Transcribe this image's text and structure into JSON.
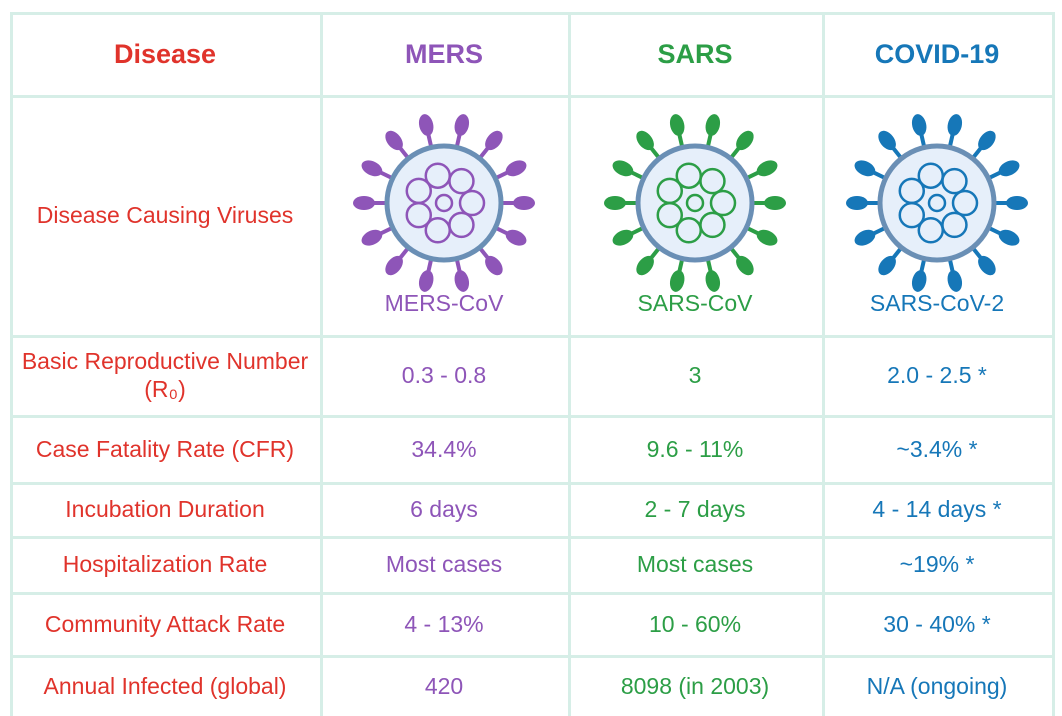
{
  "table": {
    "header": [
      "Disease",
      "MERS",
      "SARS",
      "COVID-19"
    ],
    "rows": [
      [
        "Disease Causing Viruses",
        "MERS-CoV",
        "SARS-CoV",
        "SARS-CoV-2"
      ],
      [
        "Basic Reproductive Number (R₀)",
        "0.3 - 0.8",
        "3",
        "2.0 - 2.5 *"
      ],
      [
        "Case Fatality Rate (CFR)",
        "34.4%",
        "9.6 - 11%",
        "~3.4% *"
      ],
      [
        "Incubation Duration",
        "6 days",
        "2 - 7 days",
        "4 - 14 days *"
      ],
      [
        "Hospitalization Rate",
        "Most cases",
        "Most cases",
        "~19% *"
      ],
      [
        "Community Attack Rate",
        "4 - 13%",
        "10 - 60%",
        "30 - 40% *"
      ],
      [
        "Annual Infected (global)",
        "420",
        "8098 (in 2003)",
        "N/A (ongoing)"
      ]
    ]
  }
}
